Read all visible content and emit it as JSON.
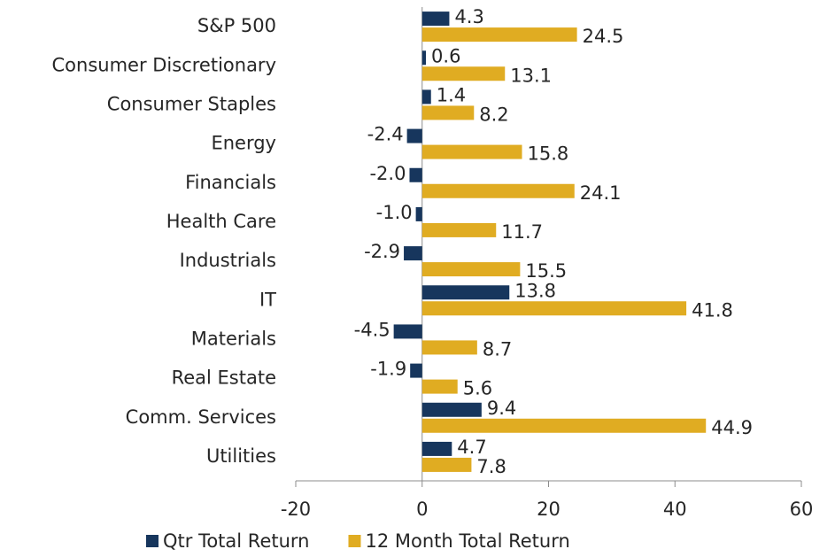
{
  "chart_data": {
    "type": "bar",
    "orientation": "horizontal",
    "categories": [
      "S&P 500",
      "Consumer Discretionary",
      "Consumer Staples",
      "Energy",
      "Financials",
      "Health Care",
      "Industrials",
      "IT",
      "Materials",
      "Real Estate",
      "Comm. Services",
      "Utilities"
    ],
    "series": [
      {
        "name": "Qtr Total Return",
        "color": "#17365d",
        "values": [
          4.3,
          0.6,
          1.4,
          -2.4,
          -2.0,
          -1.0,
          -2.9,
          13.8,
          -4.5,
          -1.9,
          9.4,
          4.7
        ],
        "value_labels": [
          "4.3",
          "0.6",
          "1.4",
          "-2.4",
          "-2.0",
          "-1.0",
          "-2.9",
          "13.8",
          "-4.5",
          "-1.9",
          "9.4",
          "4.7"
        ]
      },
      {
        "name": "12 Month Total Return",
        "color": "#e0ac22",
        "values": [
          24.5,
          13.1,
          8.2,
          15.8,
          24.1,
          11.7,
          15.5,
          41.8,
          8.7,
          5.6,
          44.9,
          7.8
        ],
        "value_labels": [
          "24.5",
          "13.1",
          "8.2",
          "15.8",
          "24.1",
          "11.7",
          "15.5",
          "41.8",
          "8.7",
          "5.6",
          "44.9",
          "7.8"
        ]
      }
    ],
    "xlim": [
      -20,
      60
    ],
    "xticks": [
      -20,
      0,
      20,
      40,
      60
    ],
    "legend": "bottom"
  }
}
